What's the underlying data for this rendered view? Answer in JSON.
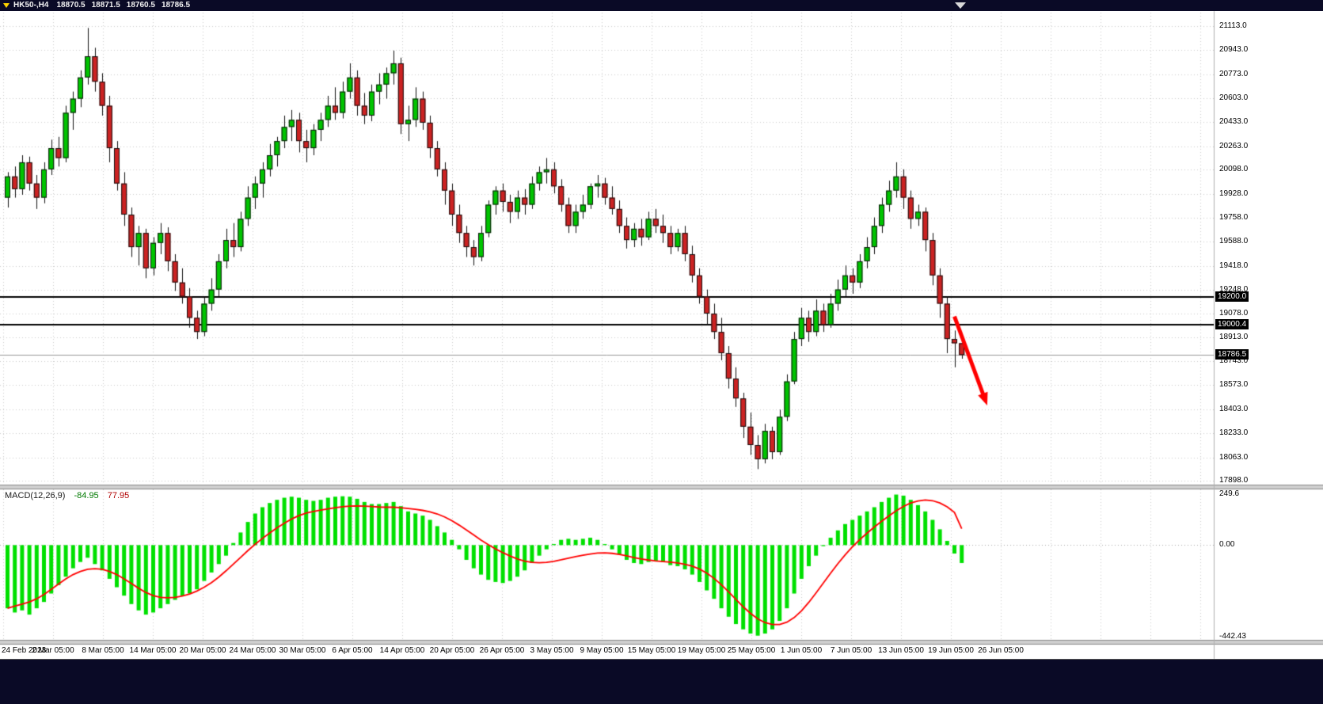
{
  "header": {
    "symbol_period": "HK50-,H4",
    "open": "18870.5",
    "high": "18871.5",
    "low": "18760.5",
    "close": "18786.5"
  },
  "price_axis": {
    "tick_labels": [
      "21113.0",
      "20943.0",
      "20773.0",
      "20603.0",
      "20433.0",
      "20263.0",
      "20098.0",
      "19928.0",
      "19758.0",
      "19588.0",
      "19418.0",
      "19248.0",
      "19078.0",
      "18913.0",
      "18743.0",
      "18573.0",
      "18403.0",
      "18233.0",
      "18063.0",
      "17898.0"
    ],
    "badges": [
      {
        "label": "19200.0",
        "price": 19200.0
      },
      {
        "label": "19000.4",
        "price": 19000.4
      },
      {
        "label": "18786.5",
        "price": 18786.5
      }
    ]
  },
  "time_axis": {
    "labels": [
      "24 Feb 2023",
      "2 Mar 05:00",
      "8 Mar 05:00",
      "14 Mar 05:00",
      "20 Mar 05:00",
      "24 Mar 05:00",
      "30 Mar 05:00",
      "6 Apr 05:00",
      "14 Apr 05:00",
      "20 Apr 05:00",
      "26 Apr 05:00",
      "3 May 05:00",
      "9 May 05:00",
      "15 May 05:00",
      "19 May 05:00",
      "25 May 05:00",
      "1 Jun 05:00",
      "7 Jun 05:00",
      "13 Jun 05:00",
      "19 Jun 05:00",
      "26 Jun 05:00"
    ]
  },
  "macd_panel": {
    "name": "MACD(12,26,9)",
    "value_main": "-84.95",
    "value_signal": "77.95",
    "axis_labels": [
      "249.6",
      "0.00",
      "-442.43"
    ]
  },
  "colors": {
    "background": "#FFFFFF",
    "chrome": "#0A0A26",
    "grid": "#CCCCCC",
    "bull": "#00C400",
    "bear": "#CC2222",
    "wick": "#111111",
    "hline": "#000000",
    "current_price_line": "#999999",
    "macd_hist": "#00E000",
    "macd_signal": "#FF0000",
    "arrow": "#FF0000",
    "badge_bg": "#000000",
    "badge_text": "#FFFFFF"
  },
  "chart_data": [
    {
      "type": "candlestick",
      "title": "HK50-,H4",
      "ylim": [
        17898,
        21113
      ],
      "y_ticks": [
        21113.0,
        20943.0,
        20773.0,
        20603.0,
        20433.0,
        20263.0,
        20098.0,
        19928.0,
        19758.0,
        19588.0,
        19418.0,
        19248.0,
        19078.0,
        18913.0,
        18743.0,
        18573.0,
        18403.0,
        18233.0,
        18063.0,
        17898.0
      ],
      "x_labels": [
        "24 Feb 2023",
        "2 Mar 05:00",
        "8 Mar 05:00",
        "14 Mar 05:00",
        "20 Mar 05:00",
        "24 Mar 05:00",
        "30 Mar 05:00",
        "6 Apr 05:00",
        "14 Apr 05:00",
        "20 Apr 05:00",
        "26 Apr 05:00",
        "3 May 05:00",
        "9 May 05:00",
        "15 May 05:00",
        "19 May 05:00",
        "25 May 05:00",
        "1 Jun 05:00",
        "7 Jun 05:00",
        "13 Jun 05:00",
        "19 Jun 05:00",
        "26 Jun 05:00"
      ],
      "hlines": [
        19200.0,
        19000.4
      ],
      "current_price": 18786.5,
      "arrow": {
        "from_index": 130,
        "from_price": 19060,
        "to_index": 134.5,
        "to_price": 18430
      },
      "candles": [
        [
          19900,
          20080,
          19830,
          20050
        ],
        [
          20050,
          20120,
          19900,
          19960
        ],
        [
          19960,
          20200,
          19920,
          20150
        ],
        [
          20150,
          20190,
          19950,
          20000
        ],
        [
          20000,
          20060,
          19820,
          19900
        ],
        [
          19900,
          20150,
          19860,
          20100
        ],
        [
          20100,
          20310,
          20060,
          20250
        ],
        [
          20250,
          20330,
          20120,
          20180
        ],
        [
          20180,
          20550,
          20150,
          20500
        ],
        [
          20500,
          20650,
          20380,
          20600
        ],
        [
          20600,
          20800,
          20540,
          20750
        ],
        [
          20750,
          21100,
          20700,
          20900
        ],
        [
          20900,
          20960,
          20650,
          20720
        ],
        [
          20720,
          20780,
          20480,
          20550
        ],
        [
          20550,
          20620,
          20150,
          20250
        ],
        [
          20250,
          20300,
          19950,
          20000
        ],
        [
          20000,
          20080,
          19700,
          19780
        ],
        [
          19780,
          19830,
          19480,
          19550
        ],
        [
          19550,
          19700,
          19420,
          19650
        ],
        [
          19650,
          19680,
          19330,
          19400
        ],
        [
          19400,
          19620,
          19350,
          19580
        ],
        [
          19580,
          19720,
          19500,
          19650
        ],
        [
          19650,
          19690,
          19380,
          19450
        ],
        [
          19450,
          19500,
          19240,
          19300
        ],
        [
          19300,
          19400,
          19150,
          19200
        ],
        [
          19200,
          19260,
          18980,
          19050
        ],
        [
          19050,
          19100,
          18900,
          18950
        ],
        [
          18950,
          19200,
          18920,
          19150
        ],
        [
          19150,
          19330,
          19100,
          19250
        ],
        [
          19250,
          19500,
          19200,
          19450
        ],
        [
          19450,
          19680,
          19400,
          19600
        ],
        [
          19600,
          19720,
          19480,
          19550
        ],
        [
          19550,
          19800,
          19520,
          19750
        ],
        [
          19750,
          19980,
          19700,
          19900
        ],
        [
          19900,
          20050,
          19820,
          20000
        ],
        [
          20000,
          20150,
          19900,
          20100
        ],
        [
          20100,
          20280,
          20050,
          20200
        ],
        [
          20200,
          20330,
          20120,
          20300
        ],
        [
          20300,
          20480,
          20250,
          20400
        ],
        [
          20400,
          20520,
          20300,
          20450
        ],
        [
          20450,
          20500,
          20220,
          20300
        ],
        [
          20300,
          20380,
          20150,
          20250
        ],
        [
          20250,
          20420,
          20200,
          20380
        ],
        [
          20380,
          20500,
          20300,
          20450
        ],
        [
          20450,
          20620,
          20400,
          20550
        ],
        [
          20550,
          20680,
          20450,
          20500
        ],
        [
          20500,
          20720,
          20460,
          20650
        ],
        [
          20650,
          20850,
          20600,
          20750
        ],
        [
          20750,
          20800,
          20480,
          20550
        ],
        [
          20550,
          20640,
          20420,
          20480
        ],
        [
          20480,
          20700,
          20440,
          20650
        ],
        [
          20650,
          20780,
          20560,
          20700
        ],
        [
          20700,
          20820,
          20600,
          20780
        ],
        [
          20780,
          20940,
          20700,
          20850
        ],
        [
          20850,
          20890,
          20350,
          20420
        ],
        [
          20420,
          20550,
          20300,
          20450
        ],
        [
          20450,
          20680,
          20400,
          20600
        ],
        [
          20600,
          20650,
          20380,
          20430
        ],
        [
          20430,
          20480,
          20180,
          20250
        ],
        [
          20250,
          20300,
          20050,
          20100
        ],
        [
          20100,
          20150,
          19850,
          19950
        ],
        [
          19950,
          20000,
          19700,
          19780
        ],
        [
          19780,
          19850,
          19580,
          19650
        ],
        [
          19650,
          19700,
          19480,
          19550
        ],
        [
          19550,
          19600,
          19420,
          19480
        ],
        [
          19480,
          19700,
          19450,
          19650
        ],
        [
          19650,
          19880,
          19620,
          19850
        ],
        [
          19850,
          19980,
          19780,
          19950
        ],
        [
          19950,
          20000,
          19800,
          19870
        ],
        [
          19870,
          19920,
          19720,
          19800
        ],
        [
          19800,
          19950,
          19750,
          19900
        ],
        [
          19900,
          19960,
          19780,
          19850
        ],
        [
          19850,
          20050,
          19820,
          20000
        ],
        [
          20000,
          20120,
          19950,
          20080
        ],
        [
          20080,
          20180,
          20000,
          20100
        ],
        [
          20100,
          20150,
          19930,
          19980
        ],
        [
          19980,
          20030,
          19800,
          19850
        ],
        [
          19850,
          19900,
          19650,
          19700
        ],
        [
          19700,
          19850,
          19650,
          19800
        ],
        [
          19800,
          19920,
          19750,
          19850
        ],
        [
          19850,
          20000,
          19820,
          19980
        ],
        [
          19980,
          20060,
          19900,
          20000
        ],
        [
          20000,
          20040,
          19850,
          19900
        ],
        [
          19900,
          19980,
          19780,
          19820
        ],
        [
          19820,
          19880,
          19650,
          19700
        ],
        [
          19700,
          19760,
          19540,
          19600
        ],
        [
          19600,
          19720,
          19550,
          19680
        ],
        [
          19680,
          19750,
          19560,
          19620
        ],
        [
          19620,
          19800,
          19600,
          19750
        ],
        [
          19750,
          19820,
          19650,
          19700
        ],
        [
          19700,
          19780,
          19580,
          19650
        ],
        [
          19650,
          19700,
          19500,
          19550
        ],
        [
          19550,
          19680,
          19520,
          19650
        ],
        [
          19650,
          19700,
          19450,
          19500
        ],
        [
          19500,
          19560,
          19300,
          19350
        ],
        [
          19350,
          19400,
          19150,
          19200
        ],
        [
          19200,
          19250,
          19000,
          19080
        ],
        [
          19080,
          19150,
          18900,
          18950
        ],
        [
          18950,
          19050,
          18750,
          18800
        ],
        [
          18800,
          18850,
          18550,
          18620
        ],
        [
          18620,
          18700,
          18420,
          18480
        ],
        [
          18480,
          18520,
          18200,
          18280
        ],
        [
          18280,
          18380,
          18080,
          18150
        ],
        [
          18150,
          18220,
          17980,
          18050
        ],
        [
          18050,
          18300,
          18020,
          18250
        ],
        [
          18250,
          18280,
          18050,
          18100
        ],
        [
          18100,
          18400,
          18080,
          18350
        ],
        [
          18350,
          18650,
          18320,
          18600
        ],
        [
          18600,
          18950,
          18580,
          18900
        ],
        [
          18900,
          19120,
          18850,
          19050
        ],
        [
          19050,
          19100,
          18880,
          18950
        ],
        [
          18950,
          19180,
          18920,
          19100
        ],
        [
          19100,
          19150,
          18950,
          19000
        ],
        [
          19000,
          19220,
          18980,
          19150
        ],
        [
          19150,
          19320,
          19100,
          19250
        ],
        [
          19250,
          19420,
          19200,
          19350
        ],
        [
          19350,
          19400,
          19220,
          19300
        ],
        [
          19300,
          19500,
          19260,
          19450
        ],
        [
          19450,
          19620,
          19400,
          19550
        ],
        [
          19550,
          19760,
          19500,
          19700
        ],
        [
          19700,
          19900,
          19650,
          19850
        ],
        [
          19850,
          20020,
          19800,
          19950
        ],
        [
          19950,
          20150,
          19900,
          20050
        ],
        [
          20050,
          20100,
          19820,
          19900
        ],
        [
          19900,
          19950,
          19680,
          19750
        ],
        [
          19750,
          19850,
          19700,
          19800
        ],
        [
          19800,
          19830,
          19520,
          19600
        ],
        [
          19600,
          19650,
          19280,
          19350
        ],
        [
          19350,
          19400,
          19050,
          19150
        ],
        [
          19150,
          19200,
          18800,
          18900
        ],
        [
          18900,
          18960,
          18700,
          18870
        ],
        [
          18870.5,
          18871.5,
          18760.5,
          18786.5
        ]
      ]
    },
    {
      "type": "bar",
      "title": "MACD(12,26,9)",
      "ylim": [
        -442.43,
        249.6
      ],
      "last_histogram": -84.95,
      "last_signal": 77.95,
      "histogram": [
        -300,
        -320,
        -310,
        -330,
        -300,
        -270,
        -230,
        -190,
        -150,
        -110,
        -80,
        -60,
        -90,
        -120,
        -160,
        -200,
        -240,
        -280,
        -310,
        -330,
        -320,
        -300,
        -280,
        -260,
        -240,
        -230,
        -210,
        -170,
        -130,
        -90,
        -50,
        10,
        60,
        110,
        150,
        180,
        200,
        215,
        225,
        230,
        225,
        215,
        210,
        215,
        225,
        230,
        232,
        230,
        220,
        205,
        195,
        195,
        200,
        205,
        185,
        160,
        150,
        140,
        120,
        90,
        60,
        25,
        -20,
        -70,
        -110,
        -140,
        -165,
        -175,
        -180,
        -170,
        -150,
        -120,
        -85,
        -50,
        -20,
        5,
        25,
        30,
        25,
        30,
        35,
        25,
        5,
        -20,
        -45,
        -70,
        -85,
        -90,
        -80,
        -75,
        -80,
        -95,
        -100,
        -115,
        -140,
        -175,
        -215,
        -255,
        -300,
        -340,
        -375,
        -400,
        -420,
        -430,
        -420,
        -400,
        -360,
        -300,
        -230,
        -160,
        -100,
        -50,
        -5,
        35,
        70,
        100,
        120,
        140,
        160,
        180,
        205,
        225,
        240,
        235,
        215,
        190,
        160,
        120,
        75,
        20,
        -40,
        -84.95
      ],
      "signal": [
        -300,
        -290,
        -280,
        -270,
        -255,
        -235,
        -210,
        -185,
        -160,
        -140,
        -125,
        -115,
        -112,
        -115,
        -125,
        -140,
        -160,
        -182,
        -205,
        -225,
        -240,
        -248,
        -250,
        -248,
        -242,
        -232,
        -218,
        -200,
        -178,
        -152,
        -122,
        -90,
        -58,
        -26,
        4,
        32,
        58,
        82,
        104,
        124,
        140,
        152,
        160,
        166,
        172,
        178,
        182,
        185,
        186,
        185,
        183,
        181,
        180,
        180,
        178,
        174,
        170,
        165,
        158,
        148,
        134,
        116,
        95,
        72,
        48,
        24,
        2,
        -18,
        -36,
        -52,
        -66,
        -76,
        -82,
        -84,
        -82,
        -77,
        -70,
        -62,
        -55,
        -48,
        -42,
        -38,
        -37,
        -39,
        -44,
        -51,
        -59,
        -66,
        -71,
        -75,
        -78,
        -81,
        -85,
        -91,
        -100,
        -114,
        -133,
        -158,
        -188,
        -222,
        -258,
        -293,
        -324,
        -350,
        -368,
        -377,
        -377,
        -366,
        -344,
        -312,
        -272,
        -227,
        -180,
        -133,
        -88,
        -46,
        -8,
        26,
        57,
        86,
        113,
        139,
        163,
        184,
        200,
        210,
        214,
        211,
        200,
        182,
        155,
        77.95
      ]
    }
  ]
}
